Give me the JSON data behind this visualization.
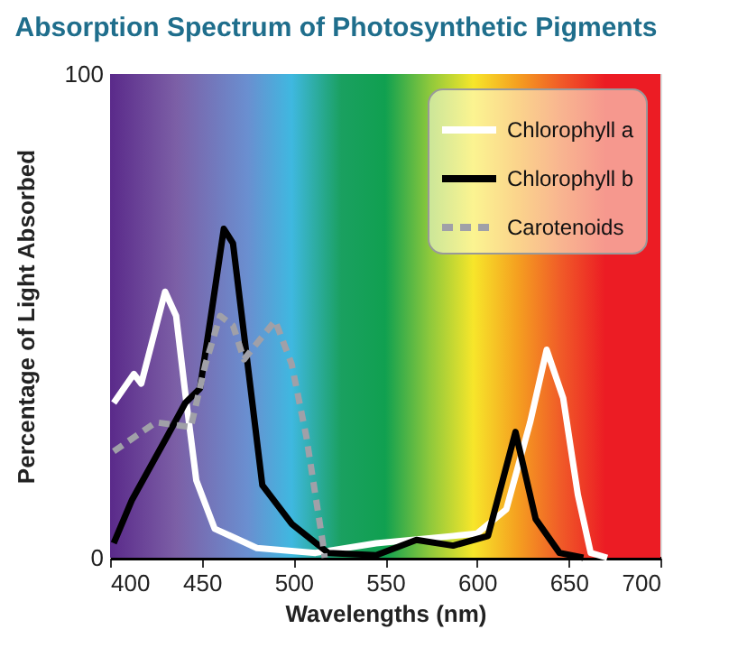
{
  "chart_data": {
    "type": "line",
    "title": "Absorption Spectrum of Photosynthetic Pigments",
    "xlabel": "Wavelengths (nm)",
    "ylabel": "Percentage of Light Absorbed",
    "xlim": [
      400,
      700
    ],
    "xticks": [
      400,
      450,
      500,
      550,
      600,
      650,
      700
    ],
    "ylim": [
      0,
      100
    ],
    "yticks": [
      0,
      100
    ],
    "legend": "top right",
    "marker": "none",
    "series": [
      {
        "name": "Chlorophyll a",
        "color": "#ffffff",
        "line_style": "solid",
        "x": [
          402,
          413,
          417,
          430,
          436,
          441,
          447,
          457,
          480,
          512,
          545,
          587,
          600,
          616,
          629,
          638,
          647,
          655,
          662,
          671
        ],
        "values": [
          32,
          38,
          36,
          55,
          50,
          34,
          16,
          6,
          2,
          1,
          3,
          4.5,
          5,
          10,
          28,
          43,
          33,
          13,
          1,
          0
        ]
      },
      {
        "name": "Chlorophyll b",
        "color": "#000000",
        "line_style": "solid",
        "x": [
          402,
          412,
          431,
          441,
          449,
          455,
          462,
          467,
          475,
          483,
          499,
          519,
          545,
          567,
          587,
          606,
          621,
          632,
          645,
          658
        ],
        "values": [
          3,
          12,
          25,
          32,
          35,
          50,
          68,
          65,
          40,
          15,
          7,
          1,
          0.5,
          3.7,
          2.5,
          4.5,
          26,
          8,
          1,
          0
        ]
      },
      {
        "name": "Carotenoids",
        "color": "#a0a0a8",
        "line_style": "dashed",
        "x": [
          402,
          425,
          444,
          452,
          460,
          467,
          473,
          490,
          499,
          507,
          516,
          517
        ],
        "values": [
          22,
          28,
          27,
          40,
          50,
          48,
          41,
          49,
          40,
          25,
          3,
          0
        ]
      }
    ]
  }
}
